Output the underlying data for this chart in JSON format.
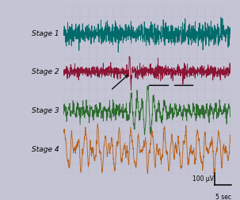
{
  "background_color": "#c4c4d4",
  "plot_bg_color": "#eaeaf2",
  "grid_color": "#b8b8c8",
  "stage_labels": [
    "Stage 1",
    "Stage 2",
    "Stage 3",
    "Stage 4"
  ],
  "stage_colors": [
    "#006b6b",
    "#8b1535",
    "#2a6a2a",
    "#b86018"
  ],
  "label_fontsize": 6.5,
  "scale_label_uv": "100 μV",
  "scale_label_sec": "5 sec",
  "seed": 42,
  "n_points": 800
}
